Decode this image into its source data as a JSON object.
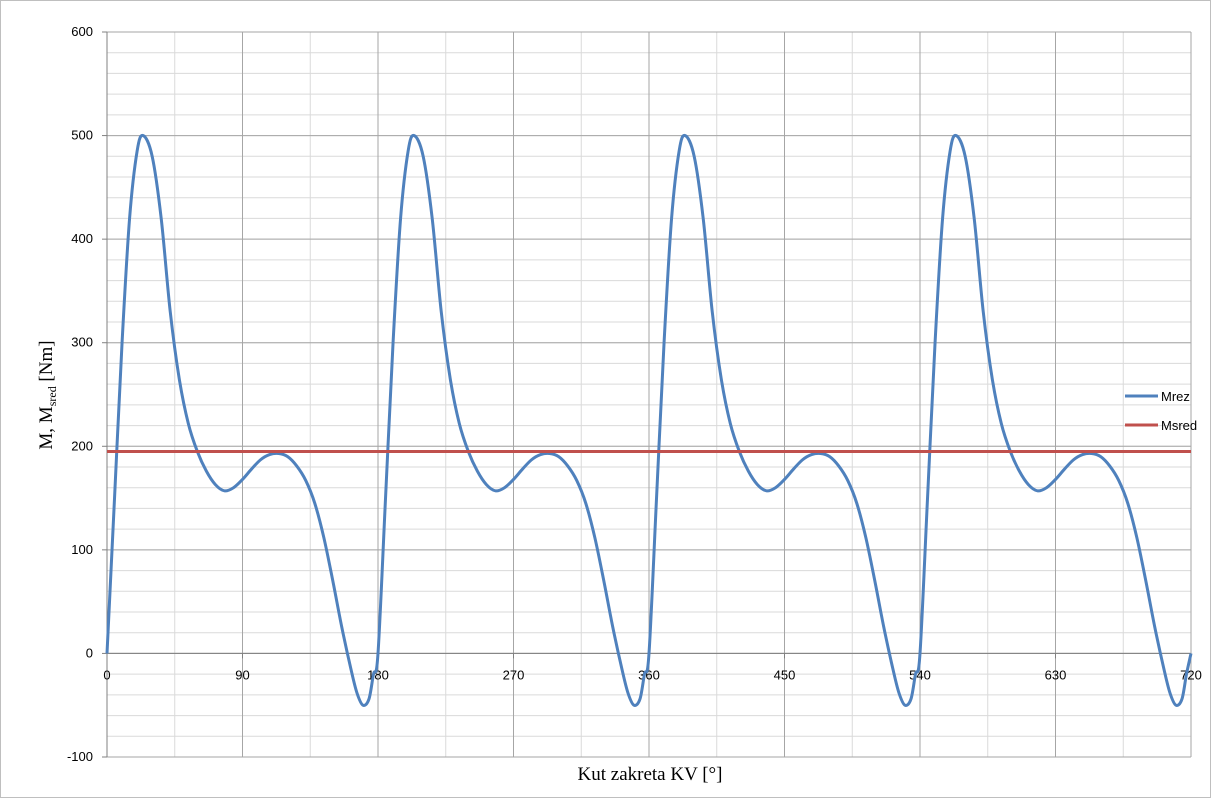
{
  "chart_data": {
    "type": "line",
    "xlabel": "Kut zakreta KV [°]",
    "ylabel": {
      "main": "M, M",
      "subscript": "sred",
      "unit": " [Nm]"
    },
    "xlim": [
      0,
      720
    ],
    "ylim": [
      -100,
      600
    ],
    "x_ticks": [
      0,
      90,
      180,
      270,
      360,
      450,
      540,
      630,
      720
    ],
    "y_ticks": [
      -100,
      0,
      100,
      200,
      300,
      400,
      500,
      600
    ],
    "x_minor_step": 45,
    "y_minor_step": 20,
    "grid": true,
    "legend_position": "right",
    "series": [
      {
        "name": "Mrez",
        "color": "#4f81bd",
        "period": 180,
        "cycle": [
          [
            0,
            0
          ],
          [
            5,
            150
          ],
          [
            10,
            300
          ],
          [
            15,
            420
          ],
          [
            20,
            485
          ],
          [
            24,
            500
          ],
          [
            30,
            480
          ],
          [
            36,
            420
          ],
          [
            42,
            330
          ],
          [
            48,
            265
          ],
          [
            54,
            222
          ],
          [
            60,
            195
          ],
          [
            66,
            176
          ],
          [
            72,
            163
          ],
          [
            78,
            157
          ],
          [
            84,
            160
          ],
          [
            90,
            168
          ],
          [
            96,
            178
          ],
          [
            102,
            187
          ],
          [
            108,
            192
          ],
          [
            114,
            193
          ],
          [
            120,
            190
          ],
          [
            126,
            181
          ],
          [
            132,
            167
          ],
          [
            138,
            145
          ],
          [
            144,
            112
          ],
          [
            150,
            70
          ],
          [
            156,
            25
          ],
          [
            162,
            -15
          ],
          [
            166,
            -38
          ],
          [
            170,
            -50
          ],
          [
            174,
            -44
          ],
          [
            177,
            -20
          ],
          [
            180,
            0
          ]
        ]
      },
      {
        "name": "Msred",
        "color": "#c0504d",
        "value": 195
      }
    ]
  }
}
